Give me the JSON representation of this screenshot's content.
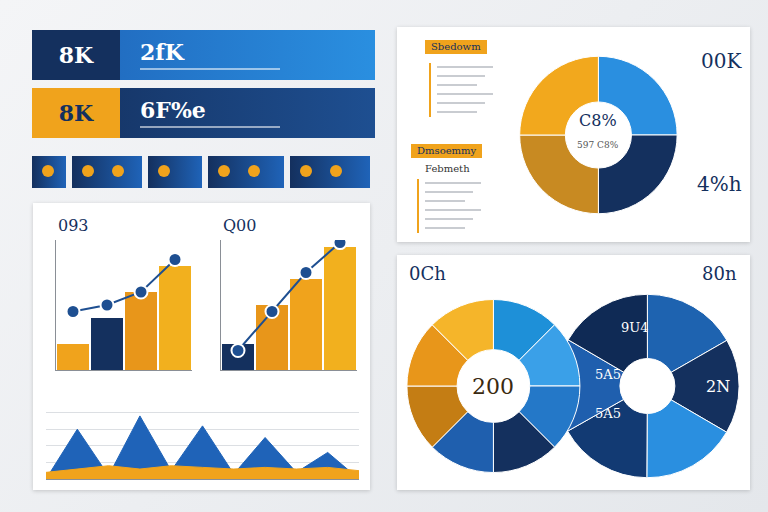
{
  "banners": [
    {
      "value": "8K",
      "text": "2fK",
      "color": "#14305e"
    },
    {
      "value": "8K",
      "text": "6F%e",
      "color": "#f0a31c"
    }
  ],
  "tags": [
    "Sbedowm",
    "Dmsoemmy",
    "Febmeth"
  ],
  "chart_data": [
    {
      "type": "pie",
      "values": [
        25,
        25,
        25,
        25
      ],
      "colors": [
        "#2a8fe0",
        "#14305e",
        "#c88a22",
        "#f2a81d"
      ],
      "annotations": [
        "C8%",
        "597 C8%",
        "00K",
        "4%h"
      ]
    },
    {
      "type": "bar",
      "categories": [
        null,
        null,
        null,
        null
      ],
      "series": [
        {
          "type": "bar",
          "values": [
            20,
            40,
            60,
            80
          ],
          "colors": [
            "#f0a31c",
            "#14305e",
            "#e8961a",
            "#f2b01e"
          ]
        },
        {
          "type": "line",
          "values": [
            45,
            50,
            60,
            85
          ],
          "color": "#1e4f91",
          "marker": "circle"
        }
      ],
      "ylim": [
        0,
        100
      ],
      "tick_labels": false,
      "annotations": [
        "093"
      ]
    },
    {
      "type": "bar",
      "categories": [
        null,
        null,
        null,
        null
      ],
      "series": [
        {
          "type": "bar",
          "values": [
            20,
            50,
            70,
            95
          ],
          "colors": [
            "#14305e",
            "#e8961a",
            "#f0a31c",
            "#f2b01e"
          ]
        },
        {
          "type": "line",
          "values": [
            15,
            45,
            75,
            98
          ],
          "color": "#1e4f91",
          "marker": "circle"
        }
      ],
      "ylim": [
        0,
        100
      ],
      "tick_labels": false,
      "annotations": [
        "Q00"
      ]
    },
    {
      "type": "area",
      "categories": [
        null,
        null,
        null,
        null,
        null,
        null,
        null,
        null,
        null,
        null,
        null
      ],
      "series": [
        {
          "values": [
            0,
            30,
            2,
            38,
            5,
            32,
            3,
            25,
            4,
            16,
            0
          ],
          "color": "#1f63b8"
        },
        {
          "values": [
            4,
            6,
            8,
            6,
            8,
            7,
            6,
            7,
            6,
            7,
            5
          ],
          "color": "#f0a31c"
        }
      ],
      "ylim": [
        0,
        50
      ],
      "yticks": [
        0,
        10,
        20,
        30,
        40,
        50
      ],
      "grid": true,
      "tick_labels": false
    },
    {
      "type": "pie",
      "series": [
        {
          "values": [
            16.7,
            16.7,
            16.7,
            16.7,
            16.6,
            16.6
          ],
          "colors": [
            "#1e63b0",
            "#14305e",
            "#2a8fe0",
            "#123a73",
            "#1f5fae",
            "#0f2a55"
          ]
        },
        {
          "values": [
            12.5,
            12.5,
            12.5,
            12.5,
            12.5,
            12.5,
            12.5,
            12.5
          ],
          "colors": [
            "#1e90d8",
            "#3aa0e8",
            "#2478c8",
            "#14305e",
            "#1f5fae",
            "#c47d14",
            "#e8961a",
            "#f5b52a"
          ]
        }
      ],
      "annotations": [
        "200",
        "0Ch",
        "80n",
        "9U4",
        "5A5",
        "5A5",
        "2N"
      ]
    }
  ]
}
